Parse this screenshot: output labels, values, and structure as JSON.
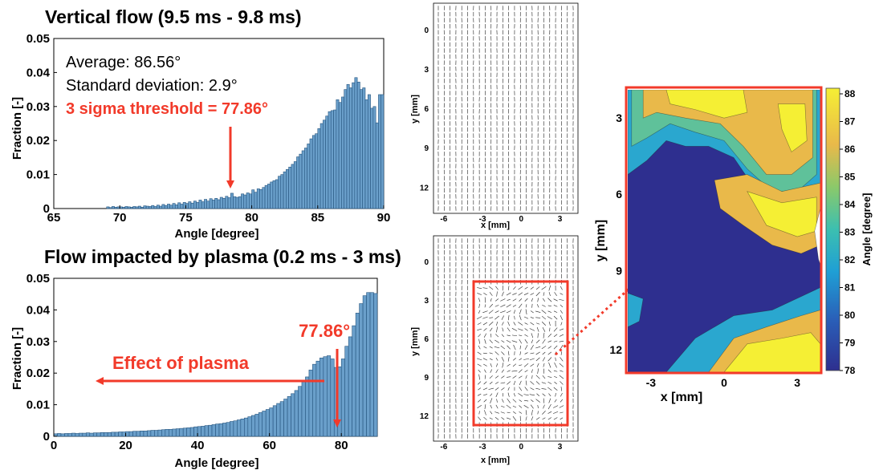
{
  "top_panel": {
    "title": "Vertical flow (9.5 ms - 9.8 ms)",
    "stats": {
      "average": "Average: 86.56°",
      "std": "Standard deviation: 2.9°",
      "threshold": "3 sigma threshold = 77.86°"
    }
  },
  "bottom_panel": {
    "title": "Flow impacted by plasma (0.2 ms - 3 ms)",
    "threshold_label": "77.86°",
    "effect_label": "Effect of plasma"
  },
  "colors": {
    "bar_fill": "#6a9fca",
    "bar_stroke": "#26557f",
    "annotation": "#f23a2a",
    "contour_low": "#2e2f8f",
    "contour_high": "#f2ee3a"
  },
  "chart_data": [
    {
      "type": "bar",
      "xlabel": "Angle [degree]",
      "ylabel": "Fraction [-]",
      "xlim": [
        65,
        90
      ],
      "ylim": [
        0,
        0.05
      ],
      "xticks": [
        "65",
        "70",
        "75",
        "80",
        "85",
        "90"
      ],
      "yticks": [
        "0",
        "0.01",
        "0.02",
        "0.03",
        "0.04",
        "0.05"
      ],
      "bin_width": 0.2,
      "x": [
        69.0,
        69.2,
        69.4,
        69.6,
        69.8,
        70.0,
        70.2,
        70.4,
        70.6,
        70.8,
        71.0,
        71.2,
        71.4,
        71.6,
        71.8,
        72.0,
        72.2,
        72.4,
        72.6,
        72.8,
        73.0,
        73.2,
        73.4,
        73.6,
        73.8,
        74.0,
        74.2,
        74.4,
        74.6,
        74.8,
        75.0,
        75.2,
        75.4,
        75.6,
        75.8,
        76.0,
        76.2,
        76.4,
        76.6,
        76.8,
        77.0,
        77.2,
        77.4,
        77.6,
        77.8,
        78.0,
        78.2,
        78.4,
        78.6,
        78.8,
        79.0,
        79.2,
        79.4,
        79.6,
        79.8,
        80.0,
        80.2,
        80.4,
        80.6,
        80.8,
        81.0,
        81.2,
        81.4,
        81.6,
        81.8,
        82.0,
        82.2,
        82.4,
        82.6,
        82.8,
        83.0,
        83.2,
        83.4,
        83.6,
        83.8,
        84.0,
        84.2,
        84.4,
        84.6,
        84.8,
        85.0,
        85.2,
        85.4,
        85.6,
        85.8,
        86.0,
        86.2,
        86.4,
        86.6,
        86.8,
        87.0,
        87.2,
        87.4,
        87.6,
        87.8,
        88.0,
        88.2,
        88.4,
        88.6,
        88.8,
        89.0,
        89.2,
        89.4,
        89.6,
        89.8
      ],
      "values": [
        0.0005,
        0.0003,
        0.0006,
        0.0004,
        0.0005,
        0.0005,
        0.0004,
        0.0006,
        0.0005,
        0.0004,
        0.0006,
        0.0005,
        0.0007,
        0.0004,
        0.0008,
        0.0007,
        0.0006,
        0.0009,
        0.0006,
        0.001,
        0.0007,
        0.0012,
        0.0009,
        0.0013,
        0.001,
        0.0015,
        0.0011,
        0.0017,
        0.0013,
        0.0018,
        0.0015,
        0.002,
        0.0016,
        0.0022,
        0.0018,
        0.0025,
        0.002,
        0.0027,
        0.0022,
        0.0029,
        0.0025,
        0.003,
        0.0026,
        0.0033,
        0.003,
        0.0036,
        0.0032,
        0.0045,
        0.0035,
        0.0033,
        0.0035,
        0.0043,
        0.004,
        0.0046,
        0.0043,
        0.0055,
        0.0048,
        0.0058,
        0.0056,
        0.0062,
        0.0068,
        0.0072,
        0.0078,
        0.0082,
        0.0085,
        0.0095,
        0.01,
        0.0108,
        0.0115,
        0.0122,
        0.013,
        0.0138,
        0.0152,
        0.016,
        0.017,
        0.0178,
        0.019,
        0.0205,
        0.0215,
        0.022,
        0.0235,
        0.025,
        0.026,
        0.0272,
        0.0285,
        0.0288,
        0.029,
        0.032,
        0.0312,
        0.0328,
        0.035,
        0.0365,
        0.0355,
        0.037,
        0.0385,
        0.0372,
        0.035,
        0.0355,
        0.032,
        0.0335,
        0.0295,
        0.03,
        0.0252,
        0.0335,
        0.0335
      ]
    },
    {
      "type": "bar",
      "xlabel": "Angle [degree]",
      "ylabel": "Fraction [-]",
      "xlim": [
        0,
        90
      ],
      "ylim": [
        0,
        0.05
      ],
      "xticks": [
        "0",
        "20",
        "40",
        "60",
        "80"
      ],
      "yticks": [
        "0",
        "0.01",
        "0.02",
        "0.03",
        "0.04",
        "0.05"
      ],
      "bin_width": 1,
      "x": [
        0,
        1,
        2,
        3,
        4,
        5,
        6,
        7,
        8,
        9,
        10,
        11,
        12,
        13,
        14,
        15,
        16,
        17,
        18,
        19,
        20,
        21,
        22,
        23,
        24,
        25,
        26,
        27,
        28,
        29,
        30,
        31,
        32,
        33,
        34,
        35,
        36,
        37,
        38,
        39,
        40,
        41,
        42,
        43,
        44,
        45,
        46,
        47,
        48,
        49,
        50,
        51,
        52,
        53,
        54,
        55,
        56,
        57,
        58,
        59,
        60,
        61,
        62,
        63,
        64,
        65,
        66,
        67,
        68,
        69,
        70,
        71,
        72,
        73,
        74,
        75,
        76,
        77,
        78,
        79,
        80,
        81,
        82,
        83,
        84,
        85,
        86,
        87,
        88,
        89
      ],
      "values": [
        0.0008,
        0.0009,
        0.0008,
        0.0009,
        0.0009,
        0.001,
        0.0009,
        0.001,
        0.001,
        0.0011,
        0.001,
        0.0011,
        0.0011,
        0.0012,
        0.0012,
        0.0012,
        0.0013,
        0.0013,
        0.0014,
        0.0014,
        0.0015,
        0.0015,
        0.0016,
        0.0016,
        0.0017,
        0.0017,
        0.0018,
        0.0019,
        0.0019,
        0.002,
        0.0021,
        0.0022,
        0.0022,
        0.0023,
        0.0024,
        0.0025,
        0.0026,
        0.0027,
        0.0028,
        0.003,
        0.0031,
        0.0032,
        0.0034,
        0.0035,
        0.0037,
        0.0039,
        0.004,
        0.0042,
        0.0044,
        0.0047,
        0.0049,
        0.0052,
        0.0055,
        0.0058,
        0.0062,
        0.0066,
        0.007,
        0.0075,
        0.008,
        0.0085,
        0.009,
        0.0097,
        0.0104,
        0.011,
        0.0118,
        0.0126,
        0.0135,
        0.0145,
        0.0158,
        0.0172,
        0.0188,
        0.021,
        0.0228,
        0.0238,
        0.0248,
        0.0252,
        0.0255,
        0.0245,
        0.0218,
        0.022,
        0.0245,
        0.0285,
        0.0315,
        0.035,
        0.039,
        0.042,
        0.0445,
        0.0455,
        0.0455,
        0.0452
      ]
    },
    {
      "type": "vector_field",
      "xlabel": "x [mm]",
      "ylabel": "y [mm]",
      "xticks": [
        "-6",
        "-3",
        "0",
        "3"
      ],
      "yticks": [
        "0",
        "3",
        "6",
        "9",
        "12"
      ],
      "description_note": ""
    },
    {
      "type": "vector_field",
      "xlabel": "x [mm]",
      "ylabel": "y [mm]",
      "xticks": [
        "-6",
        "-3",
        "0",
        "3"
      ],
      "yticks": [
        "0",
        "3",
        "6",
        "9",
        "12"
      ]
    },
    {
      "type": "heatmap",
      "xlabel": "x [mm]",
      "ylabel": "y [mm]",
      "xticks": [
        "-3",
        "0",
        "3"
      ],
      "yticks": [
        "3",
        "6",
        "9",
        "12"
      ],
      "colorbar_label": "Angle [degree]",
      "colorbar_ticks": [
        "88",
        "87",
        "86",
        "85",
        "84",
        "83",
        "82",
        "81",
        "80",
        "79",
        "78"
      ],
      "colorbar_range": [
        78,
        88
      ]
    }
  ]
}
